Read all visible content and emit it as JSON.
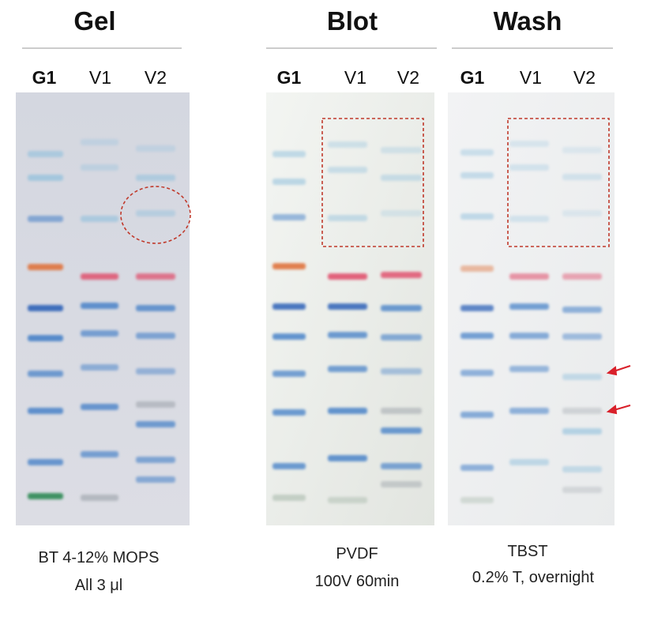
{
  "panels": [
    {
      "title": "Gel",
      "lanes": [
        "G1",
        "V1",
        "V2"
      ],
      "caption": [
        "BT 4-12% MOPS",
        "All 3 μl"
      ]
    },
    {
      "title": "Blot",
      "lanes": [
        "G1",
        "V1",
        "V2"
      ],
      "caption": [
        "PVDF",
        "100V 60min"
      ]
    },
    {
      "title": "Wash",
      "lanes": [
        "G1",
        "V1",
        "V2"
      ],
      "caption": [
        "TBST",
        "0.2% T, overnight"
      ]
    }
  ]
}
